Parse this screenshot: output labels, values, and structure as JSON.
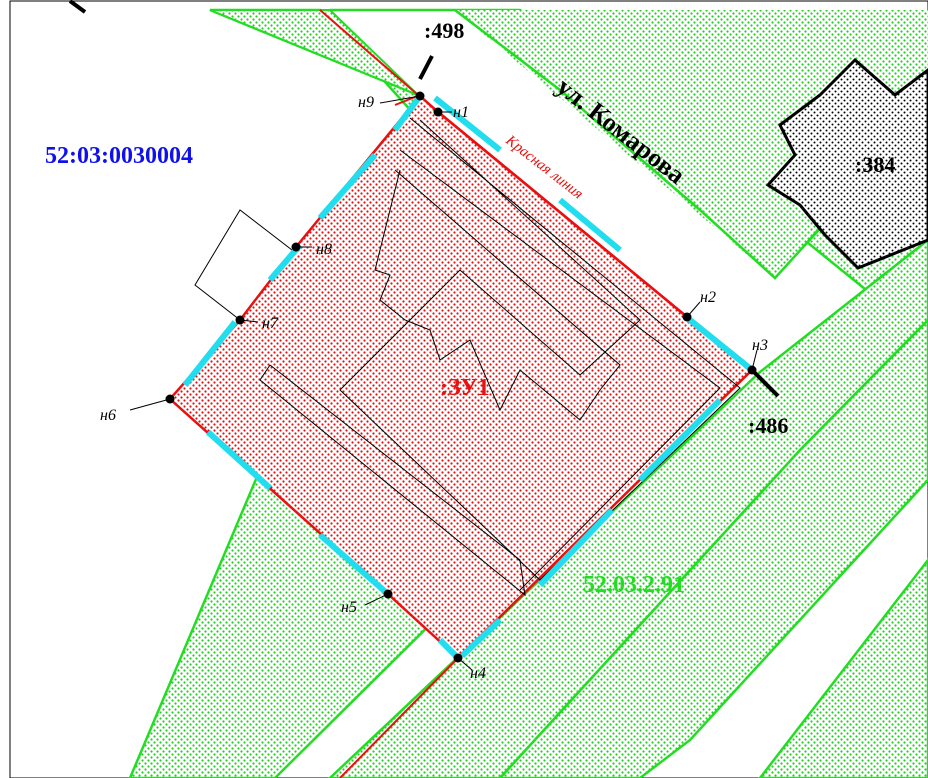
{
  "map": {
    "cadastral_quarter": "52:03:0030004",
    "zone_code": "52.03.2.91",
    "street_name": "ул. Комарова",
    "red_line_label": "Красная линия",
    "parcel_label": ":ЗУ1",
    "neighbors": {
      "n498": ":498",
      "n486": ":486",
      "n384": ":384"
    },
    "points": {
      "p1": "н1",
      "p2": "н2",
      "p3": "н3",
      "p4": "н4",
      "p5": "н5",
      "p6": "н6",
      "p7": "н7",
      "p8": "н8",
      "p9": "н9"
    },
    "colors": {
      "zone_green": "#22dd22",
      "parcel_red": "#e81010",
      "quarter_blue": "#1010ee",
      "boundary_cyan": "#22ddee",
      "neighbor_black": "#000000"
    }
  }
}
